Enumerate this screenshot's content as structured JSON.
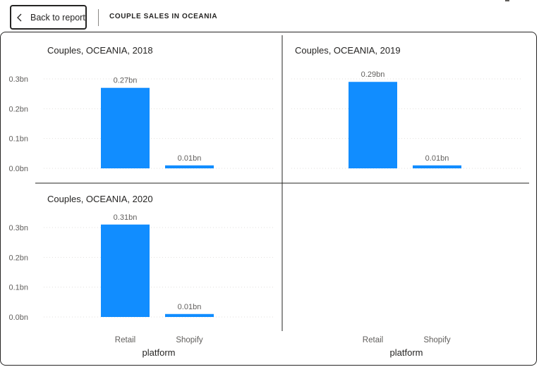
{
  "header": {
    "back_label": "Back to report",
    "page_title": "COUPLE SALES IN OCEANIA",
    "back_icon": "chevron-left-icon"
  },
  "colors": {
    "bar": "#118DFF",
    "grid": "#E1DFDD",
    "divider": "#252423",
    "text": "#252423",
    "muted": "#605E5C"
  },
  "chart_data": {
    "type": "bar",
    "layout": "small-multiples",
    "x_title": "platform",
    "categories": [
      "Retail",
      "Shopify"
    ],
    "ylim": [
      0,
      0.32
    ],
    "yticks": [
      "0.0bn",
      "0.1bn",
      "0.2bn",
      "0.3bn"
    ],
    "ytick_values": [
      0,
      0.1,
      0.2,
      0.3
    ],
    "grid": true,
    "panels": [
      {
        "title": "Couples, OCEANIA, 2018",
        "values": [
          0.27,
          0.01
        ],
        "labels": [
          "0.27bn",
          "0.01bn"
        ]
      },
      {
        "title": "Couples, OCEANIA, 2019",
        "values": [
          0.29,
          0.01
        ],
        "labels": [
          "0.29bn",
          "0.01bn"
        ]
      },
      {
        "title": "Couples, OCEANIA, 2020",
        "values": [
          0.31,
          0.01
        ],
        "labels": [
          "0.31bn",
          "0.01bn"
        ]
      }
    ]
  }
}
